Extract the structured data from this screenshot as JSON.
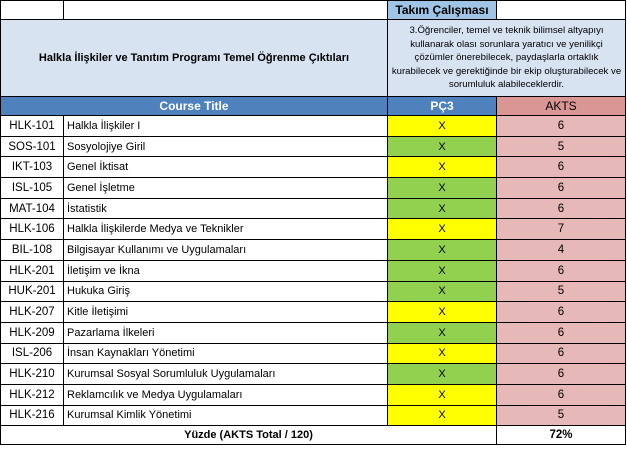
{
  "header": {
    "section_title": "Takım Çalışması",
    "table_title": "Halkla İlişkiler ve Tanıtım Programı Temel Öğrenme Çıktıları",
    "outcome_description": "3.Öğrenciler, temel ve teknik bilimsel altyapıyı kullanarak olası sorunlara yaratıcı ve yenilikçi çözümler önerebilecek, paydaşlarla ortaklık kurabilecek ve gerektiğinde bir ekip oluşturabilecek ve sorumluluk alabileceklerdir."
  },
  "columns": {
    "course_title": "Course Title",
    "outcome": "PÇ3",
    "akts": "AKTS"
  },
  "rows": [
    {
      "code": "HLK-101",
      "title": "Halkla İlişkiler I",
      "mark": "X",
      "mark_color": "yellow",
      "akts": "6"
    },
    {
      "code": "SOS-101",
      "title": "Sosyolojiye Giril",
      "mark": "X",
      "mark_color": "green",
      "akts": "5"
    },
    {
      "code": "IKT-103",
      "title": "Genel İktisat",
      "mark": "X",
      "mark_color": "yellow",
      "akts": "6"
    },
    {
      "code": "ISL-105",
      "title": "Genel İşletme",
      "mark": "X",
      "mark_color": "green",
      "akts": "6"
    },
    {
      "code": "MAT-104",
      "title": "İstatistik",
      "mark": "X",
      "mark_color": "green",
      "akts": "6"
    },
    {
      "code": "HLK-106",
      "title": "Halkla İlişkilerde Medya ve Teknikler",
      "mark": "X",
      "mark_color": "yellow",
      "akts": "7"
    },
    {
      "code": "BIL-108",
      "title": "Bilgisayar Kullanımı ve Uygulamaları",
      "mark": "X",
      "mark_color": "green",
      "akts": "4"
    },
    {
      "code": "HLK-201",
      "title": "İletişim ve İkna",
      "mark": "X",
      "mark_color": "green",
      "akts": "6"
    },
    {
      "code": "HUK-201",
      "title": "Hukuka Giriş",
      "mark": "X",
      "mark_color": "green",
      "akts": "5"
    },
    {
      "code": "HLK-207",
      "title": "Kitle İletişimi",
      "mark": "X",
      "mark_color": "yellow",
      "akts": "6"
    },
    {
      "code": "HLK-209",
      "title": "Pazarlama İlkeleri",
      "mark": "X",
      "mark_color": "green",
      "akts": "6"
    },
    {
      "code": "ISL-206",
      "title": "İnsan Kaynakları Yönetimi",
      "mark": "X",
      "mark_color": "yellow",
      "akts": "6"
    },
    {
      "code": "HLK-210",
      "title": "Kurumsal Sosyal Sorumluluk Uygulamaları",
      "mark": "X",
      "mark_color": "green",
      "akts": "6"
    },
    {
      "code": "HLK-212",
      "title": "Reklamcılık ve Medya Uygulamaları",
      "mark": "X",
      "mark_color": "yellow",
      "akts": "6"
    },
    {
      "code": "HLK-216",
      "title": "Kurumsal Kimlik Yönetimi",
      "mark": "X",
      "mark_color": "yellow",
      "akts": "5"
    }
  ],
  "footer": {
    "label": "Yüzde (AKTS Total / 120)",
    "value": "72%"
  }
}
